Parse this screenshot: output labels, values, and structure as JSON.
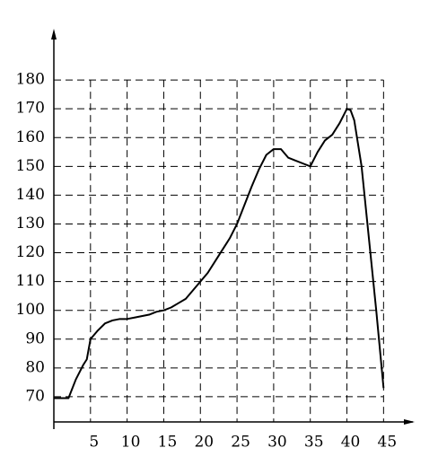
{
  "chart_data": {
    "type": "line",
    "x": [
      0,
      1,
      2,
      3,
      4,
      4.5,
      5,
      6,
      7,
      8,
      9,
      10,
      11,
      12,
      13,
      14,
      15,
      16,
      17,
      18,
      19,
      20,
      21,
      22,
      23,
      24,
      25,
      26,
      27,
      28,
      29,
      30,
      31,
      32,
      33,
      34,
      35,
      36,
      37,
      38,
      39,
      40,
      40.5,
      41,
      42,
      43,
      44,
      45
    ],
    "series": [
      {
        "color": "#000000",
        "values": [
          69.5,
          69.5,
          69.5,
          76,
          81,
          83,
          90,
          93,
          95.5,
          96.5,
          97,
          97,
          97.5,
          98,
          98.5,
          99.5,
          100,
          101,
          102.5,
          104,
          107,
          110,
          113,
          117,
          121,
          125,
          130,
          136.5,
          143,
          149,
          154,
          156,
          156,
          153,
          152,
          151,
          150,
          155,
          159,
          161,
          165,
          170,
          169.5,
          166,
          150,
          125,
          100,
          73
        ]
      }
    ],
    "xlim": [
      0,
      49
    ],
    "ylim": [
      60,
      195
    ],
    "xticks": [
      5,
      10,
      15,
      20,
      25,
      30,
      35,
      40,
      45
    ],
    "yticks": [
      70,
      80,
      90,
      100,
      110,
      120,
      130,
      140,
      150,
      160,
      170,
      180
    ],
    "grid": true
  }
}
